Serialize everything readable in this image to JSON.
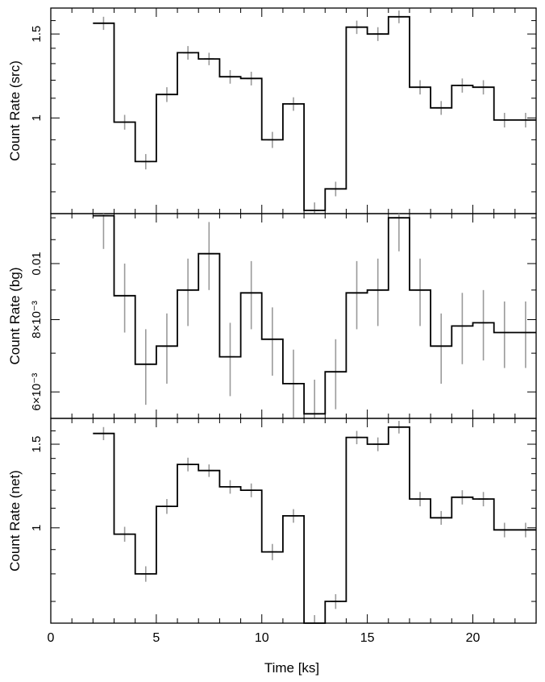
{
  "figure": {
    "xlabel": "Time [ks]"
  },
  "chart_data": [
    {
      "type": "line",
      "subtype": "step-with-errorbars",
      "panel": "src",
      "ylabel": "Count Rate (src)",
      "xlim": [
        0,
        23
      ],
      "ylim": [
        0.63,
        1.7
      ],
      "ylog": true,
      "yticks_labeled": [
        {
          "value": 1,
          "label": "1"
        },
        {
          "value": 1.5,
          "label": "1.5"
        }
      ],
      "yticks_minor": [
        0.7,
        0.8,
        0.9,
        1.1,
        1.2,
        1.3,
        1.4,
        1.6,
        1.7
      ],
      "bin_edges": [
        2.0,
        3.0,
        4.0,
        5.0,
        6.0,
        7.0,
        8.0,
        9.0,
        10.0,
        11.0,
        12.0,
        13.0,
        14.0,
        15.0,
        16.0,
        17.0,
        18.0,
        19.0,
        20.0,
        21.0,
        22.0,
        23.0
      ],
      "x": [
        2.5,
        3.5,
        4.5,
        5.5,
        6.5,
        7.5,
        8.5,
        9.5,
        10.5,
        11.5,
        12.5,
        13.5,
        14.5,
        15.5,
        16.5,
        17.5,
        18.5,
        19.5,
        20.5,
        21.5,
        22.5
      ],
      "values": [
        1.58,
        0.98,
        0.81,
        1.12,
        1.37,
        1.33,
        1.22,
        1.21,
        0.9,
        1.07,
        0.64,
        0.71,
        1.55,
        1.5,
        1.63,
        1.16,
        1.05,
        1.17,
        1.16,
        0.99,
        0.99
      ],
      "errors": [
        0.05,
        0.035,
        0.03,
        0.04,
        0.045,
        0.04,
        0.04,
        0.04,
        0.035,
        0.035,
        0.025,
        0.025,
        0.05,
        0.05,
        0.05,
        0.04,
        0.035,
        0.04,
        0.04,
        0.035,
        0.035
      ],
      "grid": false,
      "colors": {
        "step": "#000000",
        "errorbar": "#9a9a9a"
      }
    },
    {
      "type": "line",
      "subtype": "step-with-errorbars",
      "panel": "bg",
      "ylabel": "Count Rate (bg)",
      "xlim": [
        0,
        23
      ],
      "ylim": [
        0.0054,
        0.0122
      ],
      "ylog": true,
      "yticks_labeled": [
        {
          "value": 0.006,
          "label": "6×10⁻³"
        },
        {
          "value": 0.008,
          "label": "8×10⁻³"
        },
        {
          "value": 0.01,
          "label": "0.01"
        }
      ],
      "yticks_minor": [
        0.007,
        0.009,
        0.011,
        0.012
      ],
      "bin_edges": [
        2.0,
        3.0,
        4.0,
        5.0,
        6.0,
        7.0,
        8.0,
        9.0,
        10.0,
        11.0,
        12.0,
        13.0,
        14.0,
        15.0,
        16.0,
        17.0,
        18.0,
        19.0,
        20.0,
        21.0,
        22.0,
        23.0
      ],
      "x": [
        2.5,
        3.5,
        4.5,
        5.5,
        6.5,
        7.5,
        8.5,
        9.5,
        10.5,
        11.5,
        12.5,
        13.5,
        14.5,
        15.5,
        16.5,
        17.5,
        18.5,
        19.5,
        20.5,
        21.5,
        22.5
      ],
      "values": [
        0.0121,
        0.0088,
        0.0067,
        0.0072,
        0.009,
        0.0104,
        0.0069,
        0.0089,
        0.0074,
        0.0062,
        0.0055,
        0.0065,
        0.0089,
        0.009,
        0.012,
        0.009,
        0.0072,
        0.0078,
        0.0079,
        0.0076,
        0.0076
      ],
      "errors": [
        0.0015,
        0.0012,
        0.001,
        0.001,
        0.0012,
        0.0014,
        0.001,
        0.0012,
        0.001,
        0.0009,
        0.0008,
        0.0009,
        0.0012,
        0.0012,
        0.0015,
        0.0012,
        0.001,
        0.0011,
        0.0011,
        0.001,
        0.001
      ],
      "grid": false,
      "colors": {
        "step": "#000000",
        "errorbar": "#9a9a9a"
      }
    },
    {
      "type": "line",
      "subtype": "step-with-errorbars",
      "panel": "net",
      "ylabel": "Count Rate (net)",
      "xlim": [
        0,
        23
      ],
      "ylim": [
        0.63,
        1.7
      ],
      "ylog": true,
      "yticks_labeled": [
        {
          "value": 1,
          "label": "1"
        },
        {
          "value": 1.5,
          "label": "1.5"
        }
      ],
      "yticks_minor": [
        0.7,
        0.8,
        0.9,
        1.1,
        1.2,
        1.3,
        1.4,
        1.6,
        1.7
      ],
      "xticks_labeled": [
        {
          "value": 0,
          "label": "0"
        },
        {
          "value": 5,
          "label": "5"
        },
        {
          "value": 10,
          "label": "10"
        },
        {
          "value": 15,
          "label": "15"
        },
        {
          "value": 20,
          "label": "20"
        }
      ],
      "bin_edges": [
        2.0,
        3.0,
        4.0,
        5.0,
        6.0,
        7.0,
        8.0,
        9.0,
        10.0,
        11.0,
        12.0,
        13.0,
        14.0,
        15.0,
        16.0,
        17.0,
        18.0,
        19.0,
        20.0,
        21.0,
        22.0,
        23.0
      ],
      "x": [
        2.5,
        3.5,
        4.5,
        5.5,
        6.5,
        7.5,
        8.5,
        9.5,
        10.5,
        11.5,
        12.5,
        13.5,
        14.5,
        15.5,
        16.5,
        17.5,
        18.5,
        19.5,
        20.5,
        21.5,
        22.5
      ],
      "values": [
        1.58,
        0.97,
        0.8,
        1.11,
        1.36,
        1.32,
        1.22,
        1.2,
        0.89,
        1.06,
        0.63,
        0.7,
        1.55,
        1.5,
        1.63,
        1.15,
        1.05,
        1.16,
        1.15,
        0.99,
        0.99
      ],
      "errors": [
        0.05,
        0.035,
        0.03,
        0.04,
        0.045,
        0.04,
        0.04,
        0.04,
        0.035,
        0.035,
        0.025,
        0.025,
        0.05,
        0.05,
        0.05,
        0.04,
        0.035,
        0.04,
        0.04,
        0.035,
        0.035
      ],
      "grid": false,
      "colors": {
        "step": "#000000",
        "errorbar": "#9a9a9a"
      }
    }
  ]
}
